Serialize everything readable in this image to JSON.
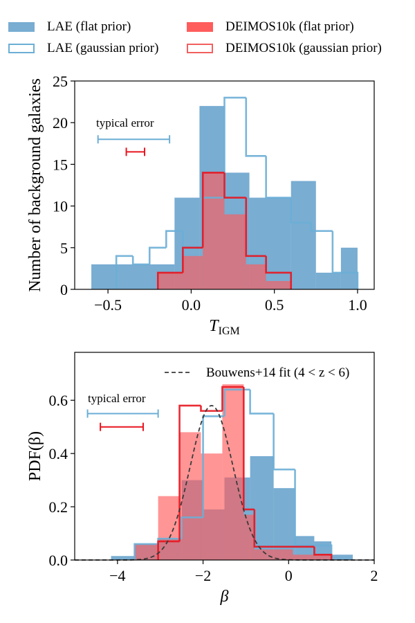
{
  "legend": {
    "items": [
      {
        "label": "LAE (flat prior)",
        "style": "filled",
        "color": "#1f77b4"
      },
      {
        "label": "LAE (gaussian prior)",
        "style": "outline",
        "color": "#6baed6"
      },
      {
        "label": "DEIMOS10k  (flat prior)",
        "style": "filled",
        "color": "#ff5c5c"
      },
      {
        "label": "DEIMOS10k (gaussian prior)",
        "style": "outline",
        "color": "#f26060"
      }
    ]
  },
  "chart_data": [
    {
      "type": "histogram",
      "panel": "top",
      "xlabel": "T",
      "xlabel_sub": "IGM",
      "ylabel": "Number of background galaxies",
      "xlim": [
        -0.7,
        1.1
      ],
      "ylim": [
        0,
        25
      ],
      "xticks": [
        -0.5,
        0.0,
        0.5,
        1.0
      ],
      "xtick_labels": [
        "−0.5",
        "0.0",
        "0.5",
        "1.0"
      ],
      "yticks": [
        0,
        5,
        10,
        15,
        20,
        25
      ],
      "ytick_labels": [
        "0",
        "5",
        "10",
        "15",
        "20",
        "25"
      ],
      "series": [
        {
          "name": "LAE (flat prior)",
          "style": "filled",
          "color": "#1f77b4",
          "edges": [
            -0.6,
            -0.1,
            0.05,
            0.2,
            0.35,
            0.6,
            0.75,
            0.9,
            1.0
          ],
          "values": [
            3,
            11,
            22,
            14,
            11,
            13,
            2,
            5
          ]
        },
        {
          "name": "LAE (gaussian prior)",
          "style": "outline",
          "color": "#6baed6",
          "edges": [
            -0.45,
            -0.35,
            -0.25,
            -0.15,
            -0.05,
            0.07,
            0.2,
            0.33,
            0.45,
            0.6,
            0.72,
            0.85,
            1.0
          ],
          "values": [
            4,
            3,
            5,
            7,
            5,
            11,
            23,
            16,
            11,
            8,
            7,
            2
          ]
        },
        {
          "name": "DEIMOS10k (flat prior)",
          "style": "filled",
          "color": "#ff5c5c",
          "edges": [
            -0.2,
            -0.05,
            0.07,
            0.2,
            0.33,
            0.45,
            0.6
          ],
          "values": [
            2,
            4,
            14,
            9,
            3,
            1
          ]
        },
        {
          "name": "DEIMOS10k (gaussian prior)",
          "style": "outline",
          "color": "#e8141e",
          "edges": [
            -0.2,
            -0.05,
            0.07,
            0.2,
            0.33,
            0.45,
            0.6
          ],
          "values": [
            2,
            5,
            14,
            11,
            4,
            2
          ]
        }
      ],
      "annotation": {
        "text": "typical error",
        "bars": [
          {
            "color": "#6baed6",
            "x_min": -0.56,
            "x_max": -0.13,
            "y": 18
          },
          {
            "color": "#e8141e",
            "x_min": -0.39,
            "x_max": -0.28,
            "y": 16.5
          }
        ]
      }
    },
    {
      "type": "histogram",
      "panel": "bottom",
      "xlabel": "β",
      "ylabel": "PDF(β)",
      "xlim": [
        -5,
        2
      ],
      "ylim": [
        0,
        0.78
      ],
      "xticks": [
        -4,
        -2,
        0,
        2
      ],
      "xtick_labels": [
        "−4",
        "−2",
        "0",
        "2"
      ],
      "yticks": [
        0.0,
        0.2,
        0.4,
        0.6
      ],
      "ytick_labels": [
        "0.0",
        "0.2",
        "0.4",
        "0.6"
      ],
      "series": [
        {
          "name": "LAE (flat prior)",
          "style": "filled",
          "color": "#1f77b4",
          "edges": [
            -4.15,
            -3.6,
            -3.05,
            -2.5,
            -2.0,
            -1.5,
            -0.9,
            -0.35,
            0.15,
            0.6,
            1.0,
            1.5
          ],
          "values": [
            0.015,
            0.06,
            0.08,
            0.3,
            0.19,
            0.31,
            0.39,
            0.27,
            0.09,
            0.07,
            0.02
          ]
        },
        {
          "name": "LAE (gaussian prior)",
          "style": "outline",
          "color": "#6baed6",
          "edges": [
            -3.6,
            -3.05,
            -2.5,
            -2.0,
            -1.5,
            -0.9,
            -0.35,
            0.15,
            1.0
          ],
          "values": [
            0.06,
            0.08,
            0.16,
            0.54,
            0.64,
            0.55,
            0.34,
            0.055
          ]
        },
        {
          "name": "DEIMOS10k (flat prior)",
          "style": "filled",
          "color": "#ff5c5c",
          "edges": [
            -3.6,
            -3.05,
            -2.55,
            -2.05,
            -1.55,
            -1.05,
            -0.8,
            0.1,
            1.0
          ],
          "values": [
            0.06,
            0.24,
            0.48,
            0.4,
            0.66,
            0.17,
            0.04,
            0.02
          ]
        },
        {
          "name": "DEIMOS10k (gaussian prior)",
          "style": "outline",
          "color": "#e8141e",
          "edges": [
            -3.05,
            -2.55,
            -2.05,
            -1.55,
            -1.05,
            -0.8,
            0.6,
            1.0
          ],
          "values": [
            0.07,
            0.58,
            0.56,
            0.65,
            0.19,
            0.05,
            0.02
          ]
        }
      ],
      "fit": {
        "label": "Bouwens+14 fit (4 < z < 6)",
        "style": "dashed",
        "color": "#3a3a3a",
        "mean": -1.8,
        "sigma": 0.5,
        "peak": 0.58
      },
      "annotation": {
        "text": "typical error",
        "bars": [
          {
            "color": "#6baed6",
            "x_min": -4.7,
            "x_max": -3.05,
            "y": 0.55
          },
          {
            "color": "#e8141e",
            "x_min": -4.4,
            "x_max": -3.4,
            "y": 0.5
          }
        ]
      }
    }
  ]
}
